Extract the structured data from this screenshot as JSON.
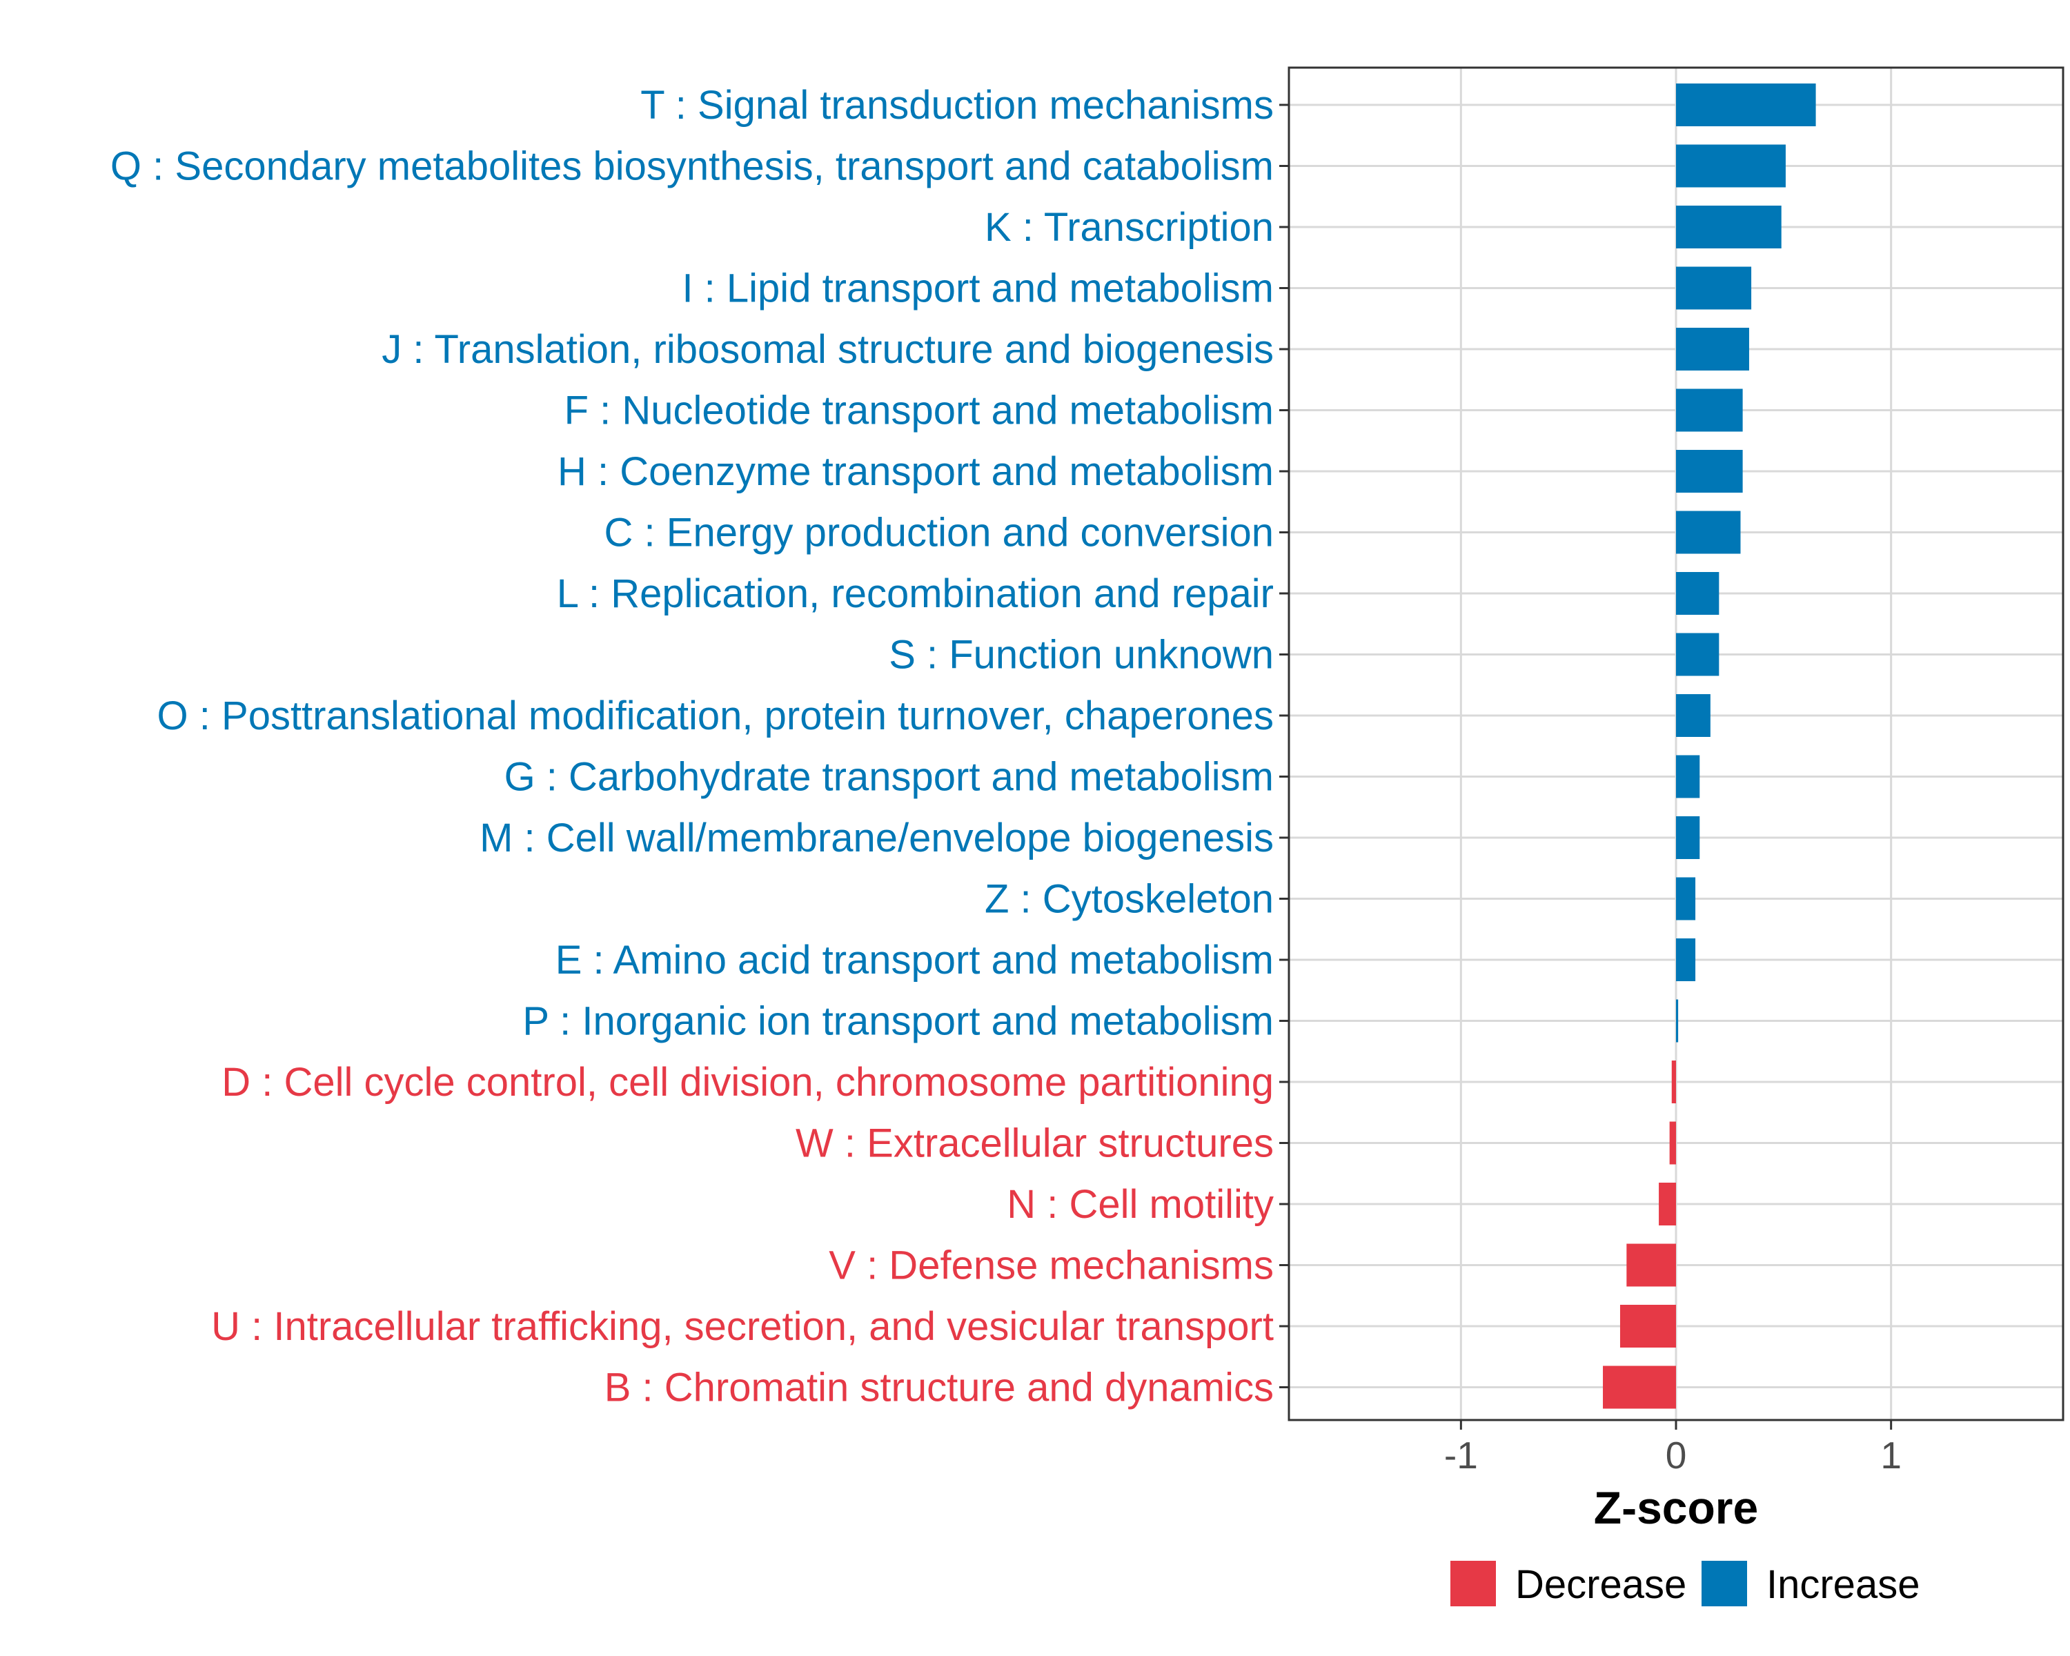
{
  "chart_data": {
    "type": "bar",
    "orientation": "horizontal",
    "xlabel": "Z-score",
    "ylabel": "",
    "xlim": [
      -1.8,
      1.8
    ],
    "x_ticks": [
      {
        "value": -1,
        "label": "-1"
      },
      {
        "value": 0,
        "label": "0"
      },
      {
        "value": 1,
        "label": "1"
      }
    ],
    "grid": true,
    "colors": {
      "Decrease": "#e63946",
      "Increase": "#0077b6"
    },
    "categories": [
      "T : Signal transduction mechanisms",
      "Q : Secondary metabolites biosynthesis, transport and catabolism",
      "K : Transcription",
      "I : Lipid transport and metabolism",
      "J : Translation, ribosomal structure and biogenesis",
      "F : Nucleotide transport and metabolism",
      "H : Coenzyme transport and metabolism",
      "C : Energy production and conversion",
      "L : Replication, recombination and repair",
      "S : Function unknown",
      "O : Posttranslational modification, protein turnover, chaperones",
      "G : Carbohydrate transport and metabolism",
      "M : Cell wall/membrane/envelope biogenesis",
      "Z : Cytoskeleton",
      "E : Amino acid transport and metabolism",
      "P : Inorganic ion transport and metabolism",
      "D : Cell cycle control, cell division, chromosome partitioning",
      "W : Extracellular structures",
      "N : Cell motility",
      "V : Defense mechanisms",
      "U : Intracellular trafficking, secretion, and vesicular transport",
      "B : Chromatin structure and dynamics"
    ],
    "values": [
      0.65,
      0.51,
      0.49,
      0.35,
      0.34,
      0.31,
      0.31,
      0.3,
      0.2,
      0.2,
      0.16,
      0.11,
      0.11,
      0.09,
      0.09,
      0.01,
      -0.02,
      -0.03,
      -0.08,
      -0.23,
      -0.26,
      -0.34
    ],
    "groups": [
      "Increase",
      "Increase",
      "Increase",
      "Increase",
      "Increase",
      "Increase",
      "Increase",
      "Increase",
      "Increase",
      "Increase",
      "Increase",
      "Increase",
      "Increase",
      "Increase",
      "Increase",
      "Increase",
      "Decrease",
      "Decrease",
      "Decrease",
      "Decrease",
      "Decrease",
      "Decrease"
    ],
    "legend": {
      "position": "bottom",
      "entries": [
        {
          "label": "Decrease",
          "color": "#e63946"
        },
        {
          "label": "Increase",
          "color": "#0077b6"
        }
      ]
    }
  }
}
